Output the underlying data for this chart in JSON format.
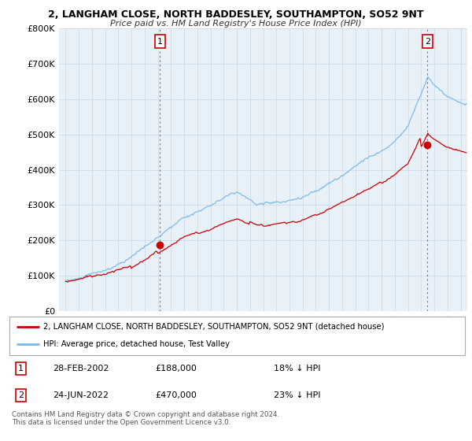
{
  "title_line1": "2, LANGHAM CLOSE, NORTH BADDESLEY, SOUTHAMPTON, SO52 9NT",
  "title_line2": "Price paid vs. HM Land Registry's House Price Index (HPI)",
  "ylim": [
    0,
    800000
  ],
  "yticks": [
    0,
    100000,
    200000,
    300000,
    400000,
    500000,
    600000,
    700000,
    800000
  ],
  "ytick_labels": [
    "£0",
    "£100K",
    "£200K",
    "£300K",
    "£400K",
    "£500K",
    "£600K",
    "£700K",
    "£800K"
  ],
  "hpi_color": "#7ab8e8",
  "price_color": "#cc0000",
  "vline_color": "#cc0000",
  "chart_bg_color": "#e8f0f8",
  "legend_label_red": "2, LANGHAM CLOSE, NORTH BADDESLEY, SOUTHAMPTON, SO52 9NT (detached house)",
  "legend_label_blue": "HPI: Average price, detached house, Test Valley",
  "transaction1_date": "28-FEB-2002",
  "transaction1_price": "£188,000",
  "transaction1_hpi": "18% ↓ HPI",
  "transaction2_date": "24-JUN-2022",
  "transaction2_price": "£470,000",
  "transaction2_hpi": "23% ↓ HPI",
  "copyright_text": "Contains HM Land Registry data © Crown copyright and database right 2024.\nThis data is licensed under the Open Government Licence v3.0.",
  "transaction1_x": 2002.17,
  "transaction2_x": 2022.48,
  "transaction1_price_val": 188000,
  "transaction2_price_val": 470000,
  "background_color": "#ffffff",
  "grid_color": "#c8d8e8"
}
